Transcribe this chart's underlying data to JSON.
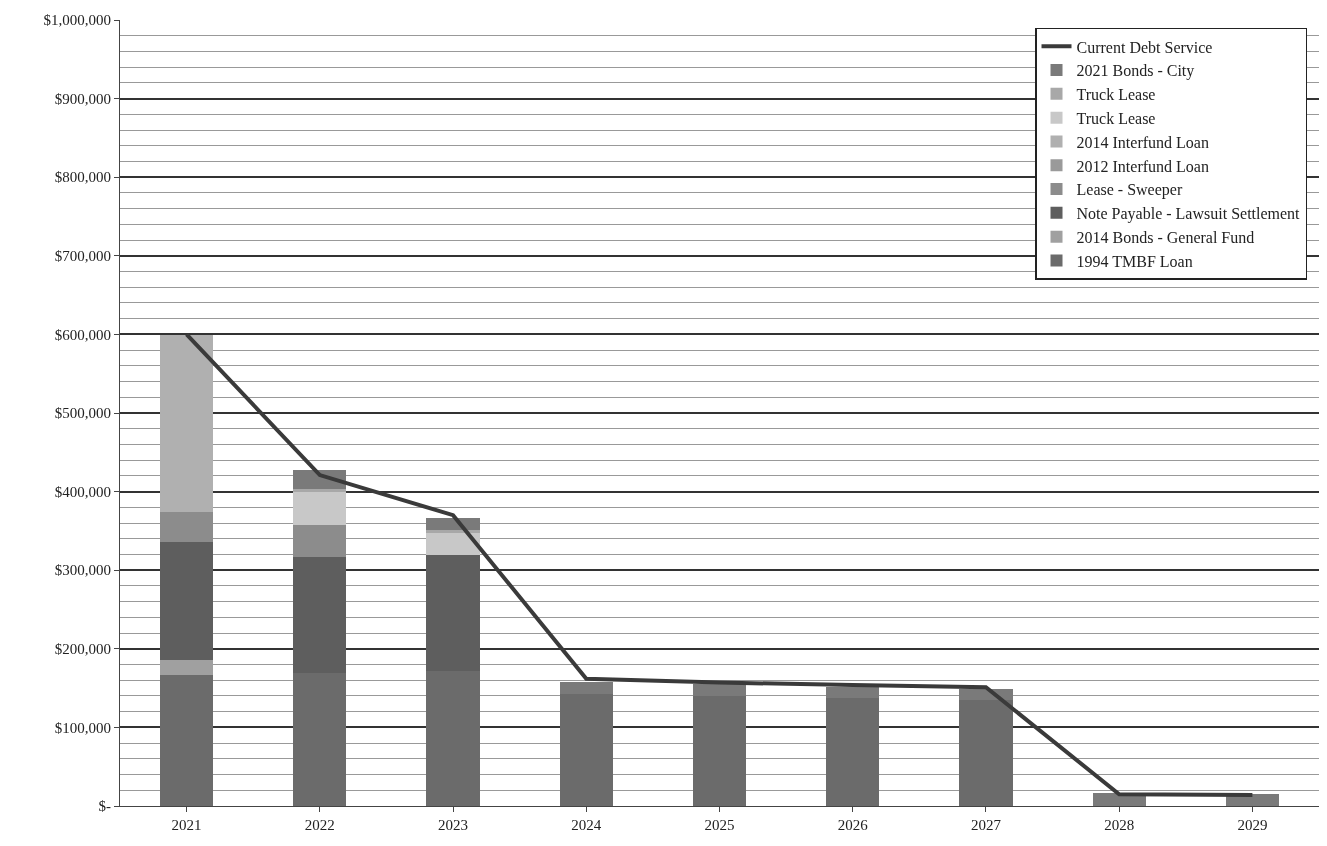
{
  "chart_data": {
    "type": "bar",
    "stacked": true,
    "categories": [
      "2021",
      "2022",
      "2023",
      "2024",
      "2025",
      "2026",
      "2027",
      "2028",
      "2029"
    ],
    "series": [
      {
        "name": "1994 TMBF Loan",
        "color": "#6b6b6b",
        "values": [
          167000,
          169000,
          172000,
          142000,
          140000,
          137000,
          135000,
          null,
          null
        ]
      },
      {
        "name": "2014 Bonds - General Fund",
        "color": "#a0a0a0",
        "values": [
          19000,
          null,
          null,
          null,
          null,
          null,
          null,
          null,
          null
        ]
      },
      {
        "name": "Note Payable - Lawsuit Settlement",
        "color": "#5e5e5e",
        "values": [
          150000,
          148000,
          147000,
          null,
          null,
          null,
          null,
          null,
          null
        ]
      },
      {
        "name": "Lease - Sweeper",
        "color": "#8c8c8c",
        "values": [
          38000,
          40000,
          null,
          null,
          null,
          null,
          null,
          null,
          null
        ]
      },
      {
        "name": "2012 Interfund Loan",
        "color": "#9a9a9a",
        "values": [
          null,
          null,
          null,
          null,
          null,
          null,
          null,
          null,
          null
        ]
      },
      {
        "name": "2014 Interfund Loan",
        "color": "#b0b0b0",
        "values": [
          225000,
          null,
          null,
          null,
          null,
          null,
          null,
          null,
          null
        ]
      },
      {
        "name": "Truck Lease",
        "color": "#c8c8c8",
        "values": [
          null,
          43000,
          28000,
          null,
          null,
          null,
          null,
          null,
          null
        ]
      },
      {
        "name": "Truck Lease",
        "color": "#a8a8a8",
        "values": [
          null,
          3000,
          4000,
          null,
          null,
          null,
          null,
          null,
          null
        ]
      },
      {
        "name": "2021 Bonds - City",
        "color": "#7a7a7a",
        "values": [
          null,
          24000,
          15000,
          16000,
          15000,
          14000,
          14000,
          16000,
          15000
        ]
      },
      {
        "name": "Current Debt Service",
        "type": "line",
        "color": "#3a3a3a",
        "values": [
          600000,
          421000,
          370000,
          162000,
          157000,
          154000,
          151000,
          15000,
          14000
        ]
      }
    ],
    "ylim": [
      0,
      1000000
    ],
    "yticks": [
      {
        "value": 0,
        "label": "$-"
      },
      {
        "value": 20000,
        "label": null
      },
      {
        "value": 40000,
        "label": null
      },
      {
        "value": 60000,
        "label": null
      },
      {
        "value": 80000,
        "label": null
      },
      {
        "value": 100000,
        "label": "$100,000"
      },
      {
        "value": 120000,
        "label": null
      },
      {
        "value": 140000,
        "label": null
      },
      {
        "value": 160000,
        "label": null
      },
      {
        "value": 180000,
        "label": null
      },
      {
        "value": 200000,
        "label": "$200,000"
      },
      {
        "value": 220000,
        "label": null
      },
      {
        "value": 240000,
        "label": null
      },
      {
        "value": 260000,
        "label": null
      },
      {
        "value": 280000,
        "label": null
      },
      {
        "value": 300000,
        "label": "$300,000"
      },
      {
        "value": 320000,
        "label": null
      },
      {
        "value": 340000,
        "label": null
      },
      {
        "value": 360000,
        "label": null
      },
      {
        "value": 380000,
        "label": null
      },
      {
        "value": 400000,
        "label": "$400,000"
      },
      {
        "value": 420000,
        "label": null
      },
      {
        "value": 440000,
        "label": null
      },
      {
        "value": 460000,
        "label": null
      },
      {
        "value": 480000,
        "label": null
      },
      {
        "value": 500000,
        "label": "$500,000"
      },
      {
        "value": 520000,
        "label": null
      },
      {
        "value": 540000,
        "label": null
      },
      {
        "value": 560000,
        "label": null
      },
      {
        "value": 580000,
        "label": null
      },
      {
        "value": 600000,
        "label": "$600,000"
      },
      {
        "value": 620000,
        "label": null
      },
      {
        "value": 640000,
        "label": null
      },
      {
        "value": 660000,
        "label": null
      },
      {
        "value": 680000,
        "label": null
      },
      {
        "value": 700000,
        "label": "$700,000"
      },
      {
        "value": 720000,
        "label": null
      },
      {
        "value": 740000,
        "label": null
      },
      {
        "value": 760000,
        "label": null
      },
      {
        "value": 780000,
        "label": null
      },
      {
        "value": 800000,
        "label": "$800,000"
      },
      {
        "value": 820000,
        "label": null
      },
      {
        "value": 840000,
        "label": null
      },
      {
        "value": 860000,
        "label": null
      },
      {
        "value": 880000,
        "label": null
      },
      {
        "value": 900000,
        "label": "$900,000"
      },
      {
        "value": 920000,
        "label": null
      },
      {
        "value": 940000,
        "label": null
      },
      {
        "value": 960000,
        "label": null
      },
      {
        "value": 980000,
        "label": null
      },
      {
        "value": 1000000,
        "label": "$1,000,000"
      }
    ],
    "grid": "y",
    "legend": "top right",
    "line_style": "solid",
    "marker": "none"
  }
}
